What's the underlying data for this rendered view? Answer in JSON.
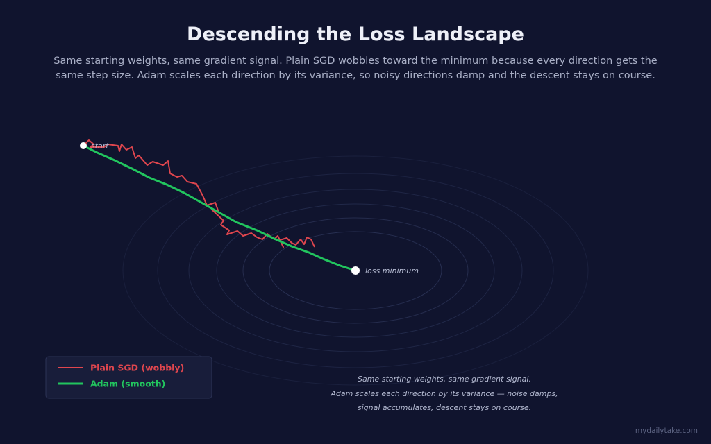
{
  "header": {
    "title": "Descending the Loss Landscape",
    "subtitle": "Same starting weights, same gradient signal. Plain SGD wobbles toward the minimum because every direction gets the same step size. Adam scales each direction by its variance, so noisy directions damp and the descent stays on course."
  },
  "diagram": {
    "start_label": "start",
    "minimum_label": "loss minimum"
  },
  "legend": {
    "items": [
      "Plain SGD (wobbly)",
      "Adam (smooth)"
    ]
  },
  "caption": {
    "lines": [
      "Same starting weights, same gradient signal.",
      "Adam scales each direction by its variance — noise damps,",
      "signal accumulates, descent stays on course."
    ]
  },
  "footer": {
    "watermark": "mydailytake.com"
  }
}
